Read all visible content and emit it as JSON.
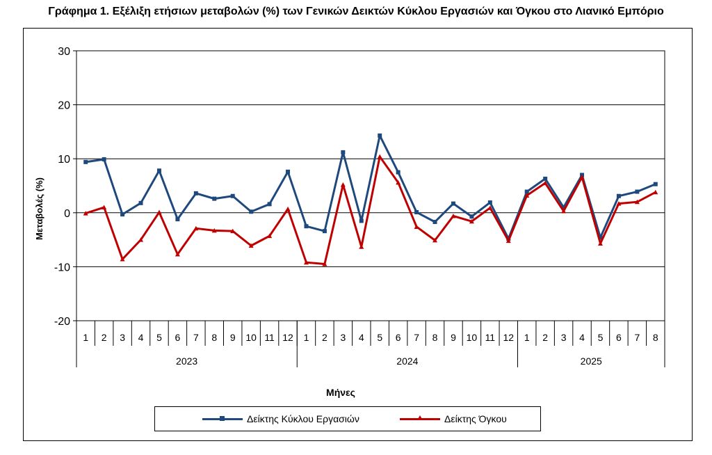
{
  "chart_data": {
    "type": "line",
    "title": "Γράφημα 1. Εξέλιξη ετήσιων μεταβολών (%) των Γενικών Δεικτών Κύκλου Εργασιών και Όγκου στο Λιανικό Εμπόριο",
    "xlabel": "Μήνες",
    "ylabel": "Μεταβολές (%)",
    "ylim": [
      -20,
      30
    ],
    "yticks": [
      30,
      20,
      10,
      0,
      -10,
      -20
    ],
    "grid": true,
    "legend_position": "bottom",
    "categories": [
      "1",
      "2",
      "3",
      "4",
      "5",
      "6",
      "7",
      "8",
      "9",
      "10",
      "11",
      "12",
      "1",
      "2",
      "3",
      "4",
      "5",
      "6",
      "7",
      "8",
      "9",
      "10",
      "11",
      "12",
      "1",
      "2",
      "3",
      "4",
      "5",
      "6",
      "7",
      "8"
    ],
    "year_groups": [
      {
        "label": "2023",
        "months": 12
      },
      {
        "label": "2024",
        "months": 12
      },
      {
        "label": "2025",
        "months": 8
      }
    ],
    "series": [
      {
        "name": "Δείκτης Κύκλου Εργασιών",
        "color": "#1F497D",
        "values": [
          9.4,
          9.9,
          -0.3,
          1.8,
          7.8,
          -1.2,
          3.6,
          2.6,
          3.1,
          0.2,
          1.6,
          7.6,
          -2.5,
          -3.4,
          11.2,
          -1.5,
          14.3,
          7.5,
          0.1,
          -1.7,
          1.7,
          -0.7,
          1.9,
          -4.8,
          3.9,
          6.3,
          1.0,
          7.0,
          -4.6,
          3.1,
          3.9,
          5.3
        ]
      },
      {
        "name": "Δείκτης Όγκου",
        "color": "#C00000",
        "values": [
          -0.1,
          1.0,
          -8.6,
          -5.0,
          0.1,
          -7.7,
          -2.9,
          -3.3,
          -3.4,
          -6.1,
          -4.3,
          0.7,
          -9.2,
          -9.5,
          5.2,
          -6.3,
          10.4,
          5.6,
          -2.6,
          -5.1,
          -0.6,
          -1.6,
          0.9,
          -5.2,
          3.2,
          5.5,
          0.3,
          6.6,
          -5.7,
          1.7,
          2.0,
          3.8
        ]
      }
    ]
  }
}
